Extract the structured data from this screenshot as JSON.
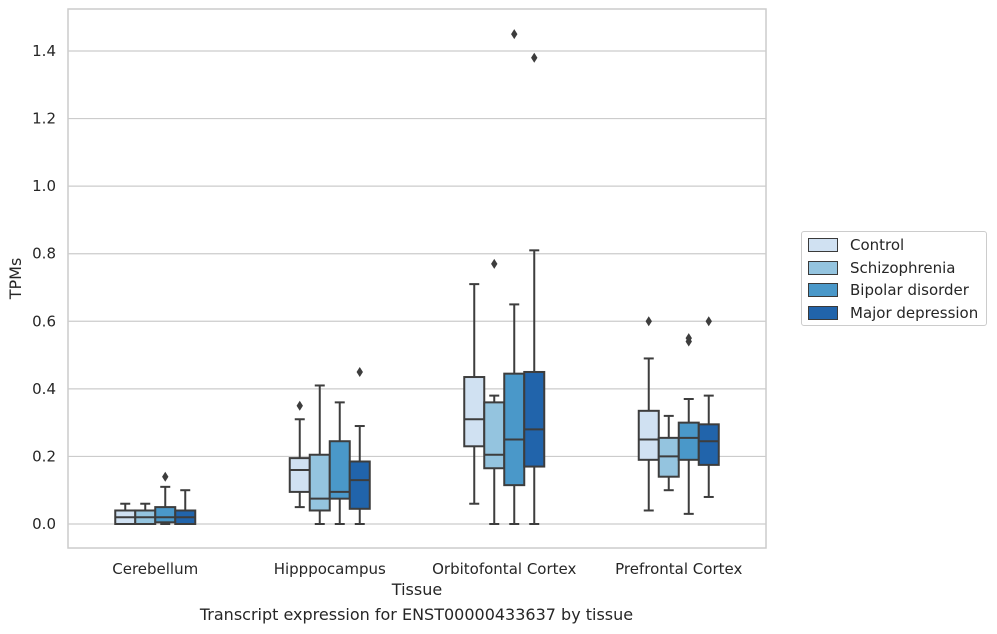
{
  "caption": "Transcript expression for ENST00000433637 by tissue",
  "chart_data": {
    "type": "box",
    "xlabel": "Tissue",
    "ylabel": "TPMs",
    "ylim": [
      -0.07,
      1.53
    ],
    "yticks": [
      0.0,
      0.2,
      0.4,
      0.6,
      0.8,
      1.0,
      1.2,
      1.4
    ],
    "ytick_labels": [
      "0.0",
      "0.2",
      "0.4",
      "0.6",
      "0.8",
      "1.0",
      "1.2",
      "1.4"
    ],
    "grid": "horizontal",
    "legend_position": "right",
    "categories": [
      "Cerebellum",
      "Hipppocampus",
      "Orbitofontal Cortex",
      "Prefrontal Cortex"
    ],
    "series": [
      {
        "name": "Control",
        "color": "#d0e1f2",
        "boxes": [
          {
            "whisker_low": 0.0,
            "q1": 0.0,
            "median": 0.02,
            "q3": 0.04,
            "whisker_high": 0.06,
            "outliers": []
          },
          {
            "whisker_low": 0.05,
            "q1": 0.095,
            "median": 0.16,
            "q3": 0.195,
            "whisker_high": 0.31,
            "outliers": [
              0.35
            ]
          },
          {
            "whisker_low": 0.06,
            "q1": 0.23,
            "median": 0.31,
            "q3": 0.435,
            "whisker_high": 0.71,
            "outliers": []
          },
          {
            "whisker_low": 0.04,
            "q1": 0.19,
            "median": 0.25,
            "q3": 0.335,
            "whisker_high": 0.49,
            "outliers": [
              0.6
            ]
          }
        ]
      },
      {
        "name": "Schizophrenia",
        "color": "#94c4df",
        "boxes": [
          {
            "whisker_low": 0.0,
            "q1": 0.0,
            "median": 0.02,
            "q3": 0.04,
            "whisker_high": 0.06,
            "outliers": []
          },
          {
            "whisker_low": 0.0,
            "q1": 0.04,
            "median": 0.075,
            "q3": 0.205,
            "whisker_high": 0.41,
            "outliers": []
          },
          {
            "whisker_low": 0.0,
            "q1": 0.165,
            "median": 0.205,
            "q3": 0.36,
            "whisker_high": 0.38,
            "outliers": [
              0.77
            ]
          },
          {
            "whisker_low": 0.1,
            "q1": 0.14,
            "median": 0.2,
            "q3": 0.255,
            "whisker_high": 0.32,
            "outliers": []
          }
        ]
      },
      {
        "name": "Bipolar disorder",
        "color": "#4a98c9",
        "boxes": [
          {
            "whisker_low": 0.0,
            "q1": 0.005,
            "median": 0.02,
            "q3": 0.05,
            "whisker_high": 0.11,
            "outliers": [
              0.14
            ]
          },
          {
            "whisker_low": 0.0,
            "q1": 0.075,
            "median": 0.095,
            "q3": 0.245,
            "whisker_high": 0.36,
            "outliers": []
          },
          {
            "whisker_low": 0.0,
            "q1": 0.115,
            "median": 0.25,
            "q3": 0.445,
            "whisker_high": 0.65,
            "outliers": [
              1.45
            ]
          },
          {
            "whisker_low": 0.03,
            "q1": 0.19,
            "median": 0.255,
            "q3": 0.3,
            "whisker_high": 0.37,
            "outliers": [
              0.54,
              0.55
            ]
          }
        ]
      },
      {
        "name": "Major depression",
        "color": "#2164ab",
        "boxes": [
          {
            "whisker_low": 0.0,
            "q1": 0.0,
            "median": 0.02,
            "q3": 0.04,
            "whisker_high": 0.1,
            "outliers": []
          },
          {
            "whisker_low": 0.0,
            "q1": 0.045,
            "median": 0.13,
            "q3": 0.185,
            "whisker_high": 0.29,
            "outliers": [
              0.45
            ]
          },
          {
            "whisker_low": 0.0,
            "q1": 0.17,
            "median": 0.28,
            "q3": 0.45,
            "whisker_high": 0.81,
            "outliers": [
              1.38
            ]
          },
          {
            "whisker_low": 0.08,
            "q1": 0.175,
            "median": 0.245,
            "q3": 0.295,
            "whisker_high": 0.38,
            "outliers": [
              0.6
            ]
          }
        ]
      }
    ]
  }
}
